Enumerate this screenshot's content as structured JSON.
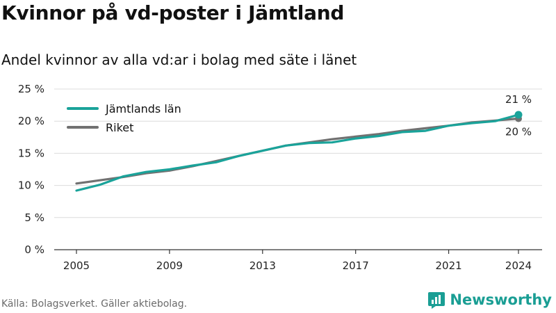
{
  "title": "Kvinnor på vd-poster i Jämtland",
  "subtitle": "Andel kvinnor av alla vd:ar i bolag med säte i länet",
  "source": "Källa: Bolagsverket. Gäller aktiebolag.",
  "brand": "Newsworthy",
  "colors": {
    "jamtland": "#1aa39a",
    "riket": "#717171",
    "grid": "#dcdcdc",
    "axis": "#333333",
    "brand": "#1a9e94"
  },
  "chart_data": {
    "type": "line",
    "title": "Kvinnor på vd-poster i Jämtland",
    "subtitle": "Andel kvinnor av alla vd:ar i bolag med säte i länet",
    "xlabel": "",
    "ylabel": "",
    "x": [
      2005,
      2006,
      2007,
      2008,
      2009,
      2010,
      2011,
      2012,
      2013,
      2014,
      2015,
      2016,
      2017,
      2018,
      2019,
      2020,
      2021,
      2022,
      2023,
      2024
    ],
    "xlim": [
      2005,
      2024
    ],
    "ylim": [
      0,
      25
    ],
    "x_ticks": [
      2005,
      2009,
      2013,
      2017,
      2021,
      2024
    ],
    "x_tick_labels": [
      "2005",
      "2009",
      "2013",
      "2017",
      "2021",
      "2024"
    ],
    "y_ticks": [
      0,
      5,
      10,
      15,
      20,
      25
    ],
    "y_tick_labels": [
      "0 %",
      "5 %",
      "10 %",
      "15 %",
      "20 %",
      "25 %"
    ],
    "grid": true,
    "legend_position": "top-left",
    "series": [
      {
        "name": "Jämtlands län",
        "color": "#1aa39a",
        "values": [
          9.2,
          10.1,
          11.4,
          12.1,
          12.5,
          13.1,
          13.6,
          14.6,
          15.4,
          16.2,
          16.6,
          16.7,
          17.3,
          17.7,
          18.3,
          18.5,
          19.3,
          19.7,
          20.0,
          21.0
        ],
        "end_label": "21 %"
      },
      {
        "name": "Riket",
        "color": "#717171",
        "values": [
          10.3,
          10.8,
          11.3,
          11.9,
          12.3,
          13.0,
          13.8,
          14.6,
          15.4,
          16.2,
          16.7,
          17.2,
          17.6,
          18.0,
          18.5,
          18.9,
          19.3,
          19.8,
          20.1,
          20.4
        ],
        "end_label": "20 %"
      }
    ]
  }
}
